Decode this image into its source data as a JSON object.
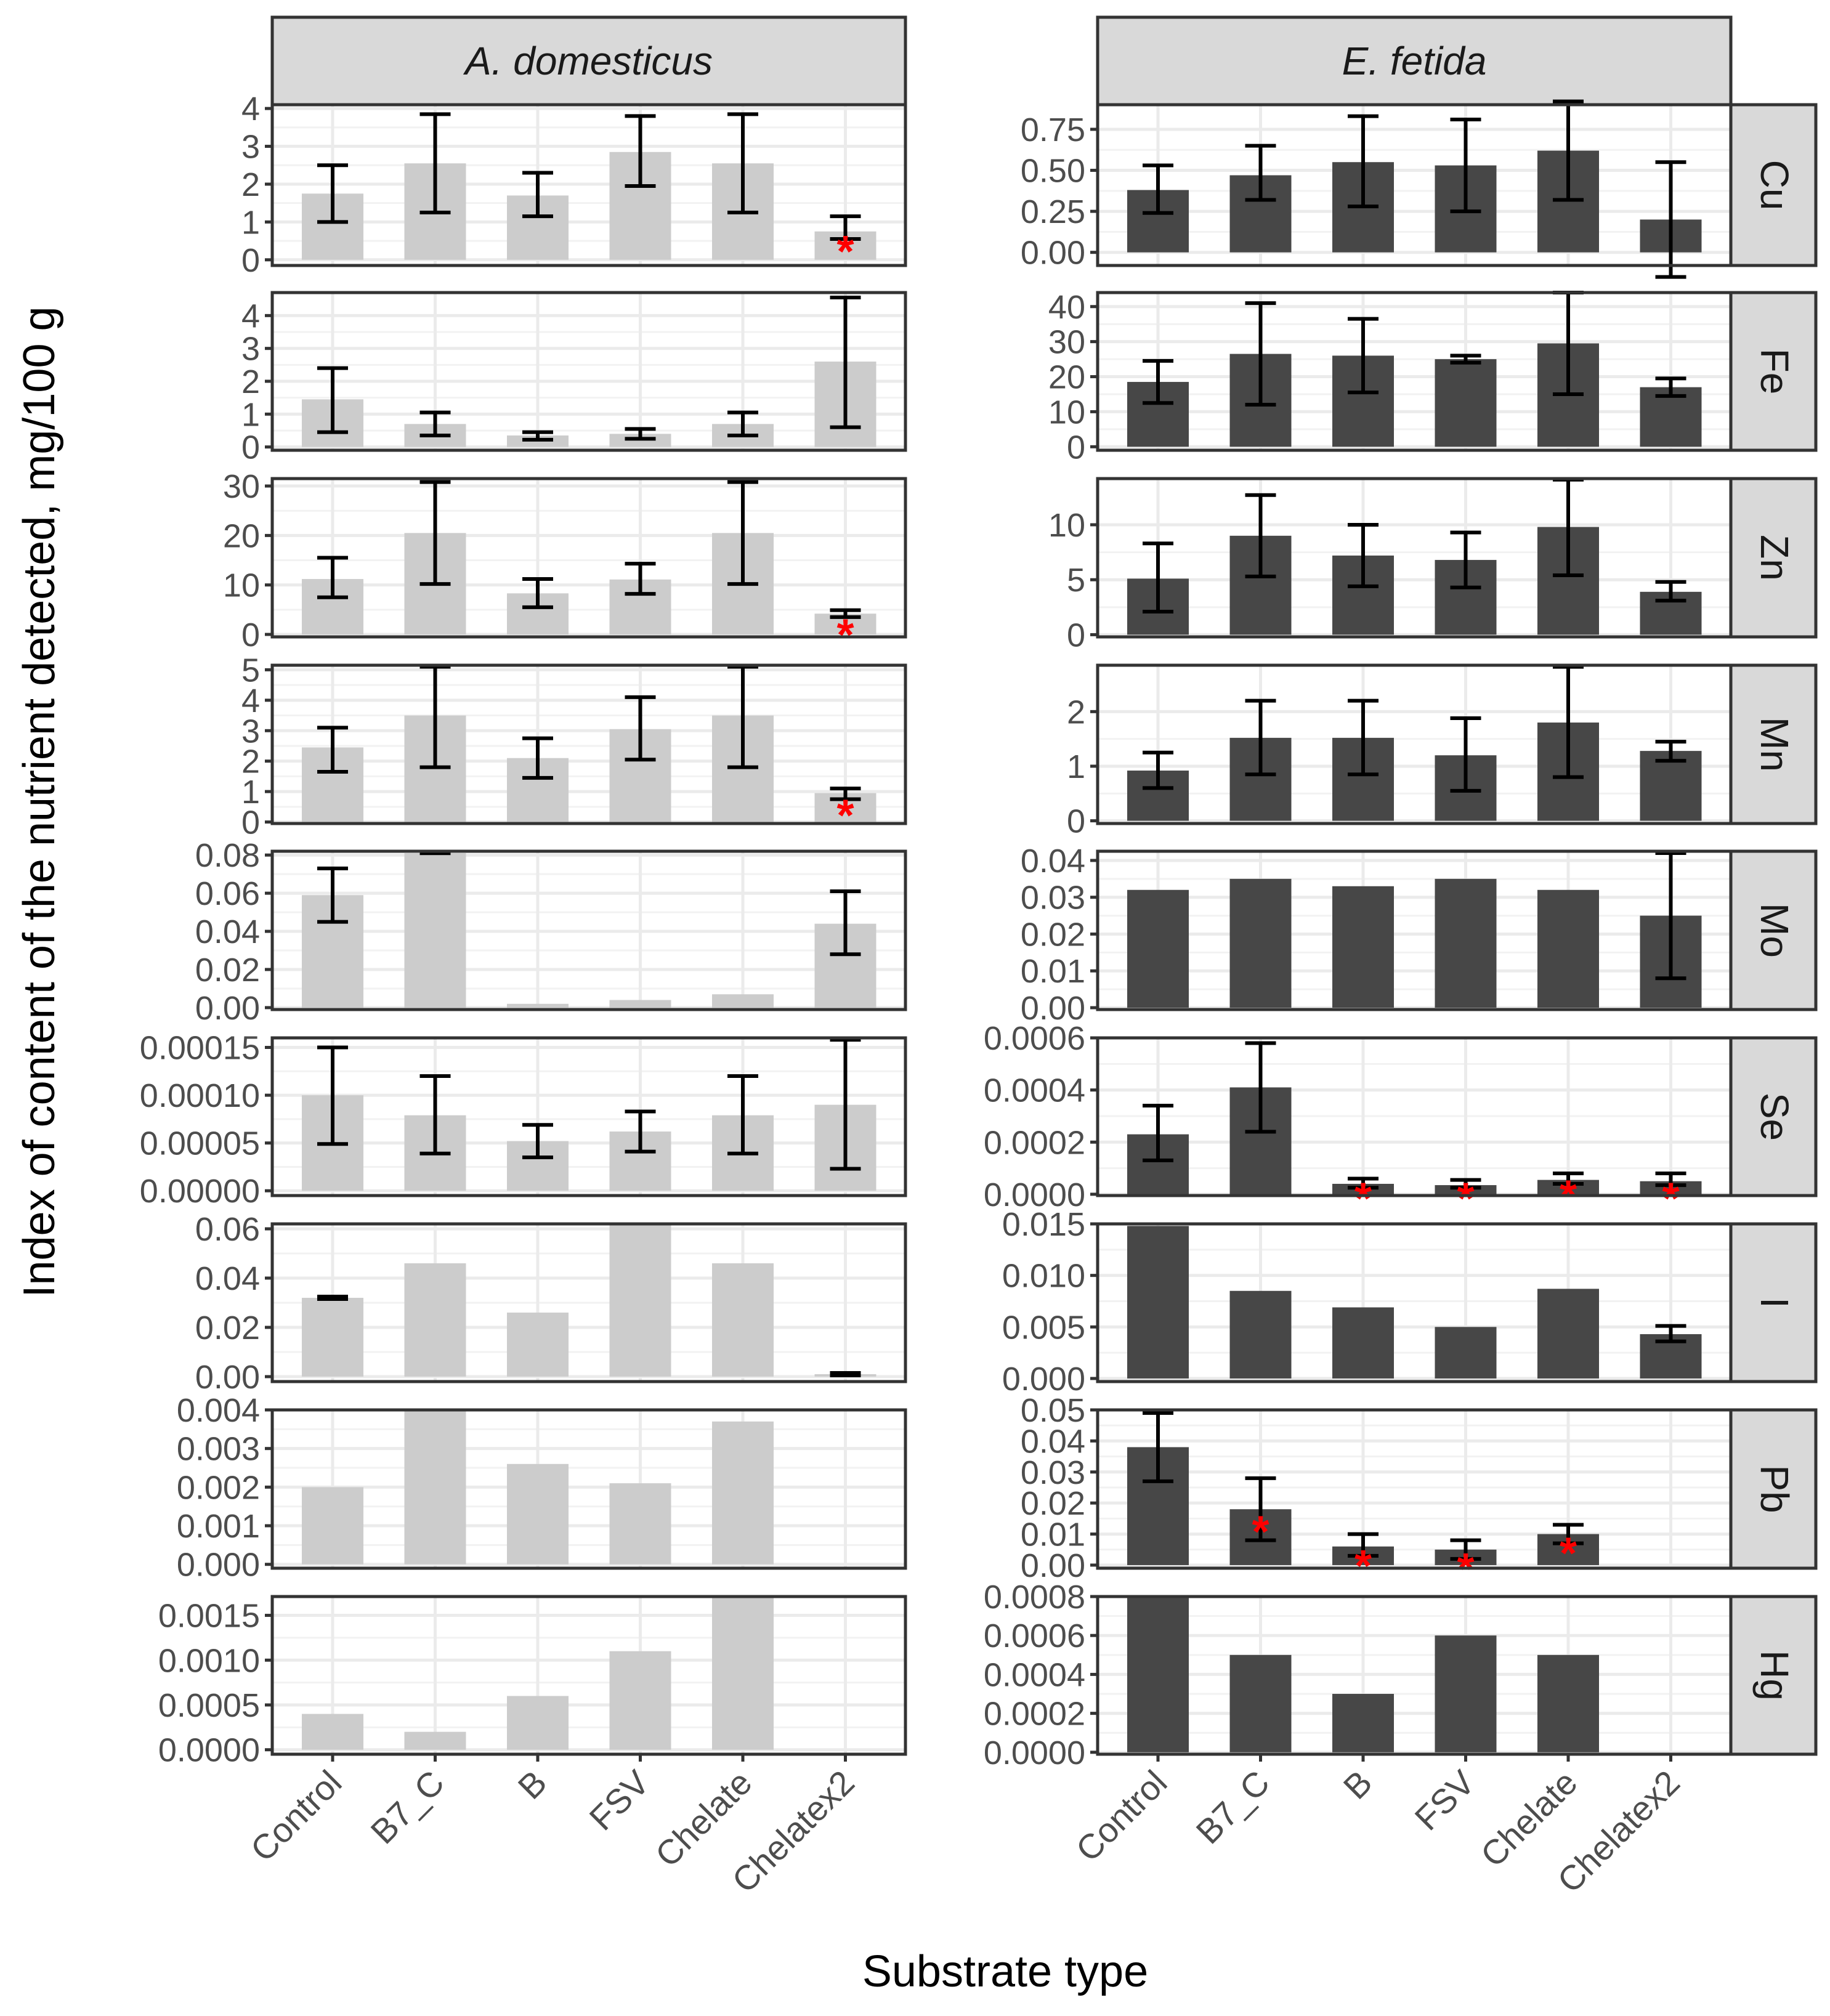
{
  "chart_data": {
    "type": "bar",
    "layout": "facet_grid",
    "xlabel": "Substrate type",
    "ylabel": "Index of content of the nutrient detected, mg/100 g",
    "categories": [
      "Control",
      "B7_C",
      "B",
      "FSV",
      "Chelate",
      "Chelatex2"
    ],
    "column_facets": [
      {
        "label": "A. domesticus",
        "italic": true,
        "bar_color": "#cccccc"
      },
      {
        "label": "E. fetida",
        "italic": true,
        "bar_color": "#474747"
      }
    ],
    "row_facets": [
      {
        "label": "Cu",
        "panels": [
          {
            "ylim": [
              -0.15,
              4.1
            ],
            "ticks": [
              0,
              1,
              2,
              3,
              4
            ],
            "tick_labels": [
              "0",
              "1",
              "2",
              "3",
              "4"
            ],
            "values": [
              1.75,
              2.55,
              1.7,
              2.85,
              2.55,
              0.75
            ],
            "err_low": [
              1.0,
              1.25,
              1.15,
              1.95,
              1.25,
              0.55
            ],
            "err_high": [
              2.5,
              3.85,
              2.3,
              3.8,
              3.85,
              1.15
            ],
            "stars": [
              null,
              null,
              null,
              null,
              null,
              0.4
            ]
          },
          {
            "ylim": [
              -0.08,
              0.9
            ],
            "ticks": [
              0,
              0.25,
              0.5,
              0.75
            ],
            "tick_labels": [
              "0.00",
              "0.25",
              "0.50",
              "0.75"
            ],
            "values": [
              0.38,
              0.47,
              0.55,
              0.53,
              0.62,
              0.2
            ],
            "err_low": [
              0.24,
              0.32,
              0.28,
              0.25,
              0.32,
              -0.15
            ],
            "err_high": [
              0.53,
              0.65,
              0.83,
              0.81,
              0.92,
              0.55
            ],
            "stars": [
              null,
              null,
              null,
              null,
              null,
              null
            ]
          }
        ]
      },
      {
        "label": "Fe",
        "panels": [
          {
            "ylim": [
              -0.1,
              4.7
            ],
            "ticks": [
              0,
              1,
              2,
              3,
              4
            ],
            "tick_labels": [
              "0",
              "1",
              "2",
              "3",
              "4"
            ],
            "values": [
              1.45,
              0.7,
              0.35,
              0.4,
              0.7,
              2.6
            ],
            "err_low": [
              0.45,
              0.35,
              0.22,
              0.25,
              0.35,
              0.6
            ],
            "err_high": [
              2.4,
              1.05,
              0.45,
              0.55,
              1.05,
              4.55
            ],
            "stars": [
              null,
              null,
              null,
              null,
              null,
              null
            ]
          },
          {
            "ylim": [
              -1,
              44
            ],
            "ticks": [
              0,
              10,
              20,
              30,
              40
            ],
            "tick_labels": [
              "0",
              "10",
              "20",
              "30",
              "40"
            ],
            "values": [
              18.5,
              26.5,
              26,
              25,
              29.5,
              17
            ],
            "err_low": [
              12.5,
              12,
              15.5,
              24,
              15,
              14.5
            ],
            "err_high": [
              24.5,
              41,
              36.5,
              26,
              44,
              19.5
            ],
            "stars": [
              null,
              null,
              null,
              null,
              null,
              null
            ]
          }
        ]
      },
      {
        "label": "Zn",
        "panels": [
          {
            "ylim": [
              -0.5,
              31.5
            ],
            "ticks": [
              0,
              10,
              20,
              30
            ],
            "tick_labels": [
              "0",
              "10",
              "20",
              "30"
            ],
            "values": [
              11.2,
              20.5,
              8.3,
              11.1,
              20.5,
              4.2
            ],
            "err_low": [
              7.5,
              10.2,
              5.5,
              8.2,
              10.2,
              3.5
            ],
            "err_high": [
              15.5,
              30.8,
              11.2,
              14.3,
              30.8,
              4.9
            ],
            "stars": [
              null,
              null,
              null,
              null,
              null,
              1.3
            ]
          },
          {
            "ylim": [
              -0.2,
              14.2
            ],
            "ticks": [
              0,
              5,
              10
            ],
            "tick_labels": [
              "0",
              "5",
              "10"
            ],
            "values": [
              5.1,
              9.0,
              7.2,
              6.8,
              9.8,
              3.9
            ],
            "err_low": [
              2.1,
              5.3,
              4.4,
              4.3,
              5.4,
              3.1
            ],
            "err_high": [
              8.3,
              12.7,
              10.0,
              9.3,
              14.1,
              4.8
            ],
            "stars": [
              null,
              null,
              null,
              null,
              null,
              null
            ]
          }
        ]
      },
      {
        "label": "Mn",
        "panels": [
          {
            "ylim": [
              -0.05,
              5.15
            ],
            "ticks": [
              0,
              1,
              2,
              3,
              4,
              5
            ],
            "tick_labels": [
              "0",
              "1",
              "2",
              "3",
              "4",
              "5"
            ],
            "values": [
              2.45,
              3.5,
              2.1,
              3.05,
              3.5,
              0.95
            ],
            "err_low": [
              1.65,
              1.8,
              1.45,
              2.05,
              1.8,
              0.75
            ],
            "err_high": [
              3.1,
              5.1,
              2.75,
              4.1,
              5.1,
              1.1
            ],
            "stars": [
              null,
              null,
              null,
              null,
              null,
              0.45
            ]
          },
          {
            "ylim": [
              -0.05,
              2.85
            ],
            "ticks": [
              0,
              1,
              2
            ],
            "tick_labels": [
              "0",
              "1",
              "2"
            ],
            "values": [
              0.92,
              1.52,
              1.52,
              1.2,
              1.8,
              1.28
            ],
            "err_low": [
              0.6,
              0.85,
              0.85,
              0.55,
              0.8,
              1.1
            ],
            "err_high": [
              1.25,
              2.2,
              2.2,
              1.88,
              2.82,
              1.45
            ],
            "stars": [
              null,
              null,
              null,
              null,
              null,
              null
            ]
          }
        ]
      },
      {
        "label": "Mo",
        "panels": [
          {
            "ylim": [
              -0.001,
              0.082
            ],
            "ticks": [
              0,
              0.02,
              0.04,
              0.06,
              0.08
            ],
            "tick_labels": [
              "0.00",
              "0.02",
              "0.04",
              "0.06",
              "0.08"
            ],
            "values": [
              0.059,
              0.081,
              0.002,
              0.004,
              0.007,
              0.044
            ],
            "err_low": [
              0.045,
              0.081,
              null,
              null,
              null,
              0.028
            ],
            "err_high": [
              0.073,
              0.081,
              null,
              null,
              null,
              0.061
            ],
            "stars": [
              null,
              null,
              null,
              null,
              null,
              null
            ]
          },
          {
            "ylim": [
              -0.0005,
              0.0425
            ],
            "ticks": [
              0,
              0.01,
              0.02,
              0.03,
              0.04
            ],
            "tick_labels": [
              "0.00",
              "0.01",
              "0.02",
              "0.03",
              "0.04"
            ],
            "values": [
              0.032,
              0.035,
              0.033,
              0.035,
              0.032,
              0.025
            ],
            "err_low": [
              null,
              null,
              null,
              null,
              null,
              0.008
            ],
            "err_high": [
              null,
              null,
              null,
              null,
              null,
              0.042
            ],
            "stars": [
              null,
              null,
              null,
              null,
              null,
              null
            ]
          }
        ]
      },
      {
        "label": "Se",
        "panels": [
          {
            "ylim": [
              -5e-06,
              0.00016
            ],
            "ticks": [
              0,
              5e-05,
              0.0001,
              0.00015
            ],
            "tick_labels": [
              "0.00000",
              "0.00005",
              "0.00010",
              "0.00015"
            ],
            "values": [
              0.0001,
              7.9e-05,
              5.2e-05,
              6.2e-05,
              7.9e-05,
              9e-05
            ],
            "err_low": [
              4.9e-05,
              3.9e-05,
              3.5e-05,
              4.1e-05,
              3.9e-05,
              2.3e-05
            ],
            "err_high": [
              0.00015,
              0.00012,
              6.9e-05,
              8.3e-05,
              0.00012,
              0.000158
            ],
            "stars": [
              null,
              null,
              null,
              null,
              null,
              null
            ]
          },
          {
            "ylim": [
              -5e-06,
              0.0006
            ],
            "ticks": [
              0,
              0.0002,
              0.0004,
              0.0006
            ],
            "tick_labels": [
              "0.0000",
              "0.0002",
              "0.0004",
              "0.0006"
            ],
            "values": [
              0.00023,
              0.00041,
              4e-05,
              3.5e-05,
              5.5e-05,
              5e-05
            ],
            "err_low": [
              0.00013,
              0.00024,
              2.5e-05,
              2.5e-05,
              4e-05,
              3.5e-05
            ],
            "err_high": [
              0.00034,
              0.00058,
              6e-05,
              5.5e-05,
              8e-05,
              8e-05
            ],
            "stars": [
              null,
              null,
              1e-05,
              1e-05,
              2e-05,
              1e-05
            ]
          }
        ]
      },
      {
        "label": "I",
        "panels": [
          {
            "ylim": [
              -0.002,
              0.062
            ],
            "ticks": [
              0,
              0.02,
              0.04,
              0.06
            ],
            "tick_labels": [
              "0.00",
              "0.02",
              "0.04",
              "0.06"
            ],
            "values": [
              0.032,
              0.046,
              0.026,
              0.062,
              0.046,
              0.001
            ],
            "err_low": [
              0.0315,
              null,
              null,
              null,
              null,
              0.0005
            ],
            "err_high": [
              0.0325,
              null,
              null,
              null,
              null,
              0.0015
            ],
            "stars": [
              null,
              null,
              null,
              null,
              null,
              null
            ]
          },
          {
            "ylim": [
              -0.0003,
              0.015
            ],
            "ticks": [
              0,
              0.005,
              0.01,
              0.015
            ],
            "tick_labels": [
              "0.000",
              "0.005",
              "0.010",
              "0.015"
            ],
            "values": [
              0.0148,
              0.0085,
              0.0069,
              0.005,
              0.0087,
              0.0043
            ],
            "err_low": [
              null,
              null,
              null,
              null,
              null,
              0.0036
            ],
            "err_high": [
              null,
              null,
              null,
              null,
              null,
              0.0051
            ],
            "stars": [
              null,
              null,
              null,
              null,
              null,
              null
            ]
          }
        ]
      },
      {
        "label": "Pb",
        "panels": [
          {
            "ylim": [
              -0.0001,
              0.004
            ],
            "ticks": [
              0,
              0.001,
              0.002,
              0.003,
              0.004
            ],
            "tick_labels": [
              "0.000",
              "0.001",
              "0.002",
              "0.003",
              "0.004"
            ],
            "values": [
              0.002,
              0.004,
              0.0026,
              0.0021,
              0.0037,
              0.0
            ],
            "err_low": [
              null,
              null,
              null,
              null,
              null,
              null
            ],
            "err_high": [
              null,
              null,
              null,
              null,
              null,
              null
            ],
            "stars": [
              null,
              null,
              null,
              null,
              null,
              null
            ]
          },
          {
            "ylim": [
              -0.001,
              0.05
            ],
            "ticks": [
              0,
              0.01,
              0.02,
              0.03,
              0.04,
              0.05
            ],
            "tick_labels": [
              "0.00",
              "0.01",
              "0.02",
              "0.03",
              "0.04",
              "0.05"
            ],
            "values": [
              0.038,
              0.018,
              0.006,
              0.005,
              0.01,
              0.0
            ],
            "err_low": [
              0.027,
              0.008,
              0.003,
              0.002,
              0.007,
              null
            ],
            "err_high": [
              0.049,
              0.028,
              0.01,
              0.008,
              0.013,
              null
            ],
            "stars": [
              null,
              0.013,
              0.002,
              0.001,
              0.006,
              null
            ]
          }
        ]
      },
      {
        "label": "Hg",
        "panels": [
          {
            "ylim": [
              -5e-05,
              0.00171
            ],
            "ticks": [
              0,
              0.0005,
              0.001,
              0.0015
            ],
            "tick_labels": [
              "0.0000",
              "0.0005",
              "0.0010",
              "0.0015"
            ],
            "values": [
              0.0004,
              0.0002,
              0.0006,
              0.0011,
              0.0017,
              0.0
            ],
            "err_low": [
              null,
              null,
              null,
              null,
              null,
              null
            ],
            "err_high": [
              null,
              null,
              null,
              null,
              null,
              null
            ],
            "stars": [
              null,
              null,
              null,
              null,
              null,
              null
            ]
          },
          {
            "ylim": [
              -1e-05,
              0.0008
            ],
            "ticks": [
              0,
              0.0002,
              0.0004,
              0.0006,
              0.0008
            ],
            "tick_labels": [
              "0.0000",
              "0.0002",
              "0.0004",
              "0.0006",
              "0.0008"
            ],
            "values": [
              0.0008,
              0.0005,
              0.0003,
              0.0006,
              0.0005,
              0.0
            ],
            "err_low": [
              null,
              null,
              null,
              null,
              null,
              null
            ],
            "err_high": [
              null,
              null,
              null,
              null,
              null,
              null
            ],
            "stars": [
              null,
              null,
              null,
              null,
              null,
              null
            ]
          }
        ]
      }
    ]
  }
}
